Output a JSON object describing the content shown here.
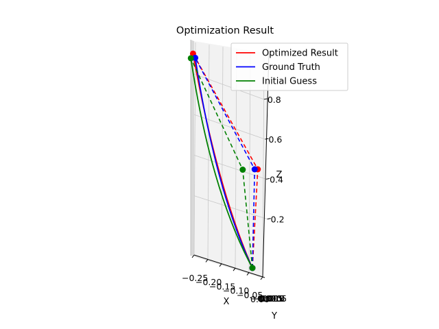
{
  "chart_data": {
    "type": "line",
    "projection": "3d",
    "title": "Optimization Result",
    "xlabel": "X",
    "ylabel": "Y",
    "zlabel": "Z",
    "x_ticks": [
      "−0.25",
      "−0.20",
      "−0.15",
      "−0.10",
      "−0.05",
      "0.00"
    ],
    "y_ticks": [
      "−0.015",
      "−0.010",
      "−0.005",
      "0.000",
      "0.005"
    ],
    "z_ticks": [
      "0.2",
      "0.4",
      "0.6",
      "0.8"
    ],
    "grid": true,
    "legend_position": "top-right",
    "series": [
      {
        "name": "Optimized Result",
        "color": "#ff0000",
        "points": [
          {
            "x": 0.0,
            "y": 0.0,
            "z": 0.0
          },
          {
            "x": 0.0,
            "y": 0.012,
            "z": 0.45
          },
          {
            "x": -0.26,
            "y": -0.006,
            "z": 1.0
          }
        ]
      },
      {
        "name": "Ground Truth",
        "color": "#0000ff",
        "points": [
          {
            "x": 0.0,
            "y": 0.0,
            "z": 0.0
          },
          {
            "x": 0.0,
            "y": 0.005,
            "z": 0.45
          },
          {
            "x": -0.25,
            "y": -0.006,
            "z": 0.98
          }
        ]
      },
      {
        "name": "Initial Guess",
        "color": "#008000",
        "points": [
          {
            "x": 0.0,
            "y": 0.0,
            "z": 0.0
          },
          {
            "x": -0.02,
            "y": -0.012,
            "z": 0.45
          },
          {
            "x": -0.27,
            "y": -0.006,
            "z": 0.98
          }
        ]
      }
    ]
  }
}
